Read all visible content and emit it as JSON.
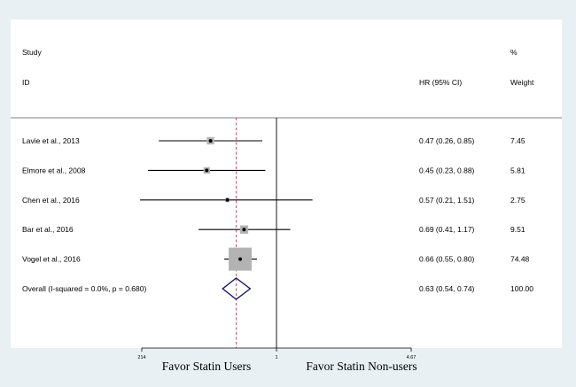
{
  "colors": {
    "outer_background": "#e9f0f3",
    "panel": "#ffffff",
    "line": "#000000",
    "null_line": "#000000",
    "overall_line": "#b5475e",
    "weight_box": "#b3b3b3",
    "diamond": "#1b1a6e"
  },
  "header": {
    "study_label": "Study",
    "id_label": "ID",
    "hr_label": "HR (95% CI)",
    "pct_label": "%",
    "weight_label": "Weight"
  },
  "axis": {
    "ticks": [
      "214",
      "1",
      "4.67"
    ],
    "left_caption": "Favor Statin Users",
    "right_caption": "Favor Statin Non-users"
  },
  "chart_data": {
    "type": "forest",
    "measure": "HR (95% CI)",
    "x_scale": "log",
    "x_range": [
      0.214,
      4.67
    ],
    "null_value": 1,
    "studies": [
      {
        "label": "Lavie et al., 2013",
        "hr": 0.47,
        "lo": 0.26,
        "hi": 0.85,
        "ci_text": "0.47 (0.26, 0.85)",
        "weight": 7.45,
        "weight_text": "7.45"
      },
      {
        "label": "Elmore et al., 2008",
        "hr": 0.45,
        "lo": 0.23,
        "hi": 0.88,
        "ci_text": "0.45 (0.23, 0.88)",
        "weight": 5.81,
        "weight_text": "5.81"
      },
      {
        "label": "Chen et al., 2016",
        "hr": 0.57,
        "lo": 0.21,
        "hi": 1.51,
        "ci_text": "0.57 (0.21, 1.51)",
        "weight": 2.75,
        "weight_text": "2.75"
      },
      {
        "label": "Bar et al., 2016",
        "hr": 0.69,
        "lo": 0.41,
        "hi": 1.17,
        "ci_text": "0.69 (0.41, 1.17)",
        "weight": 9.51,
        "weight_text": "9.51"
      },
      {
        "label": "Vogel et al., 2016",
        "hr": 0.66,
        "lo": 0.55,
        "hi": 0.8,
        "ci_text": "0.66 (0.55, 0.80)",
        "weight": 74.48,
        "weight_text": "74.48"
      }
    ],
    "overall": {
      "label": "Overall  (I-squared = 0.0%, p = 0.680)",
      "hr": 0.63,
      "lo": 0.54,
      "hi": 0.74,
      "ci_text": "0.63 (0.54, 0.74)",
      "weight_text": "100.00"
    }
  }
}
